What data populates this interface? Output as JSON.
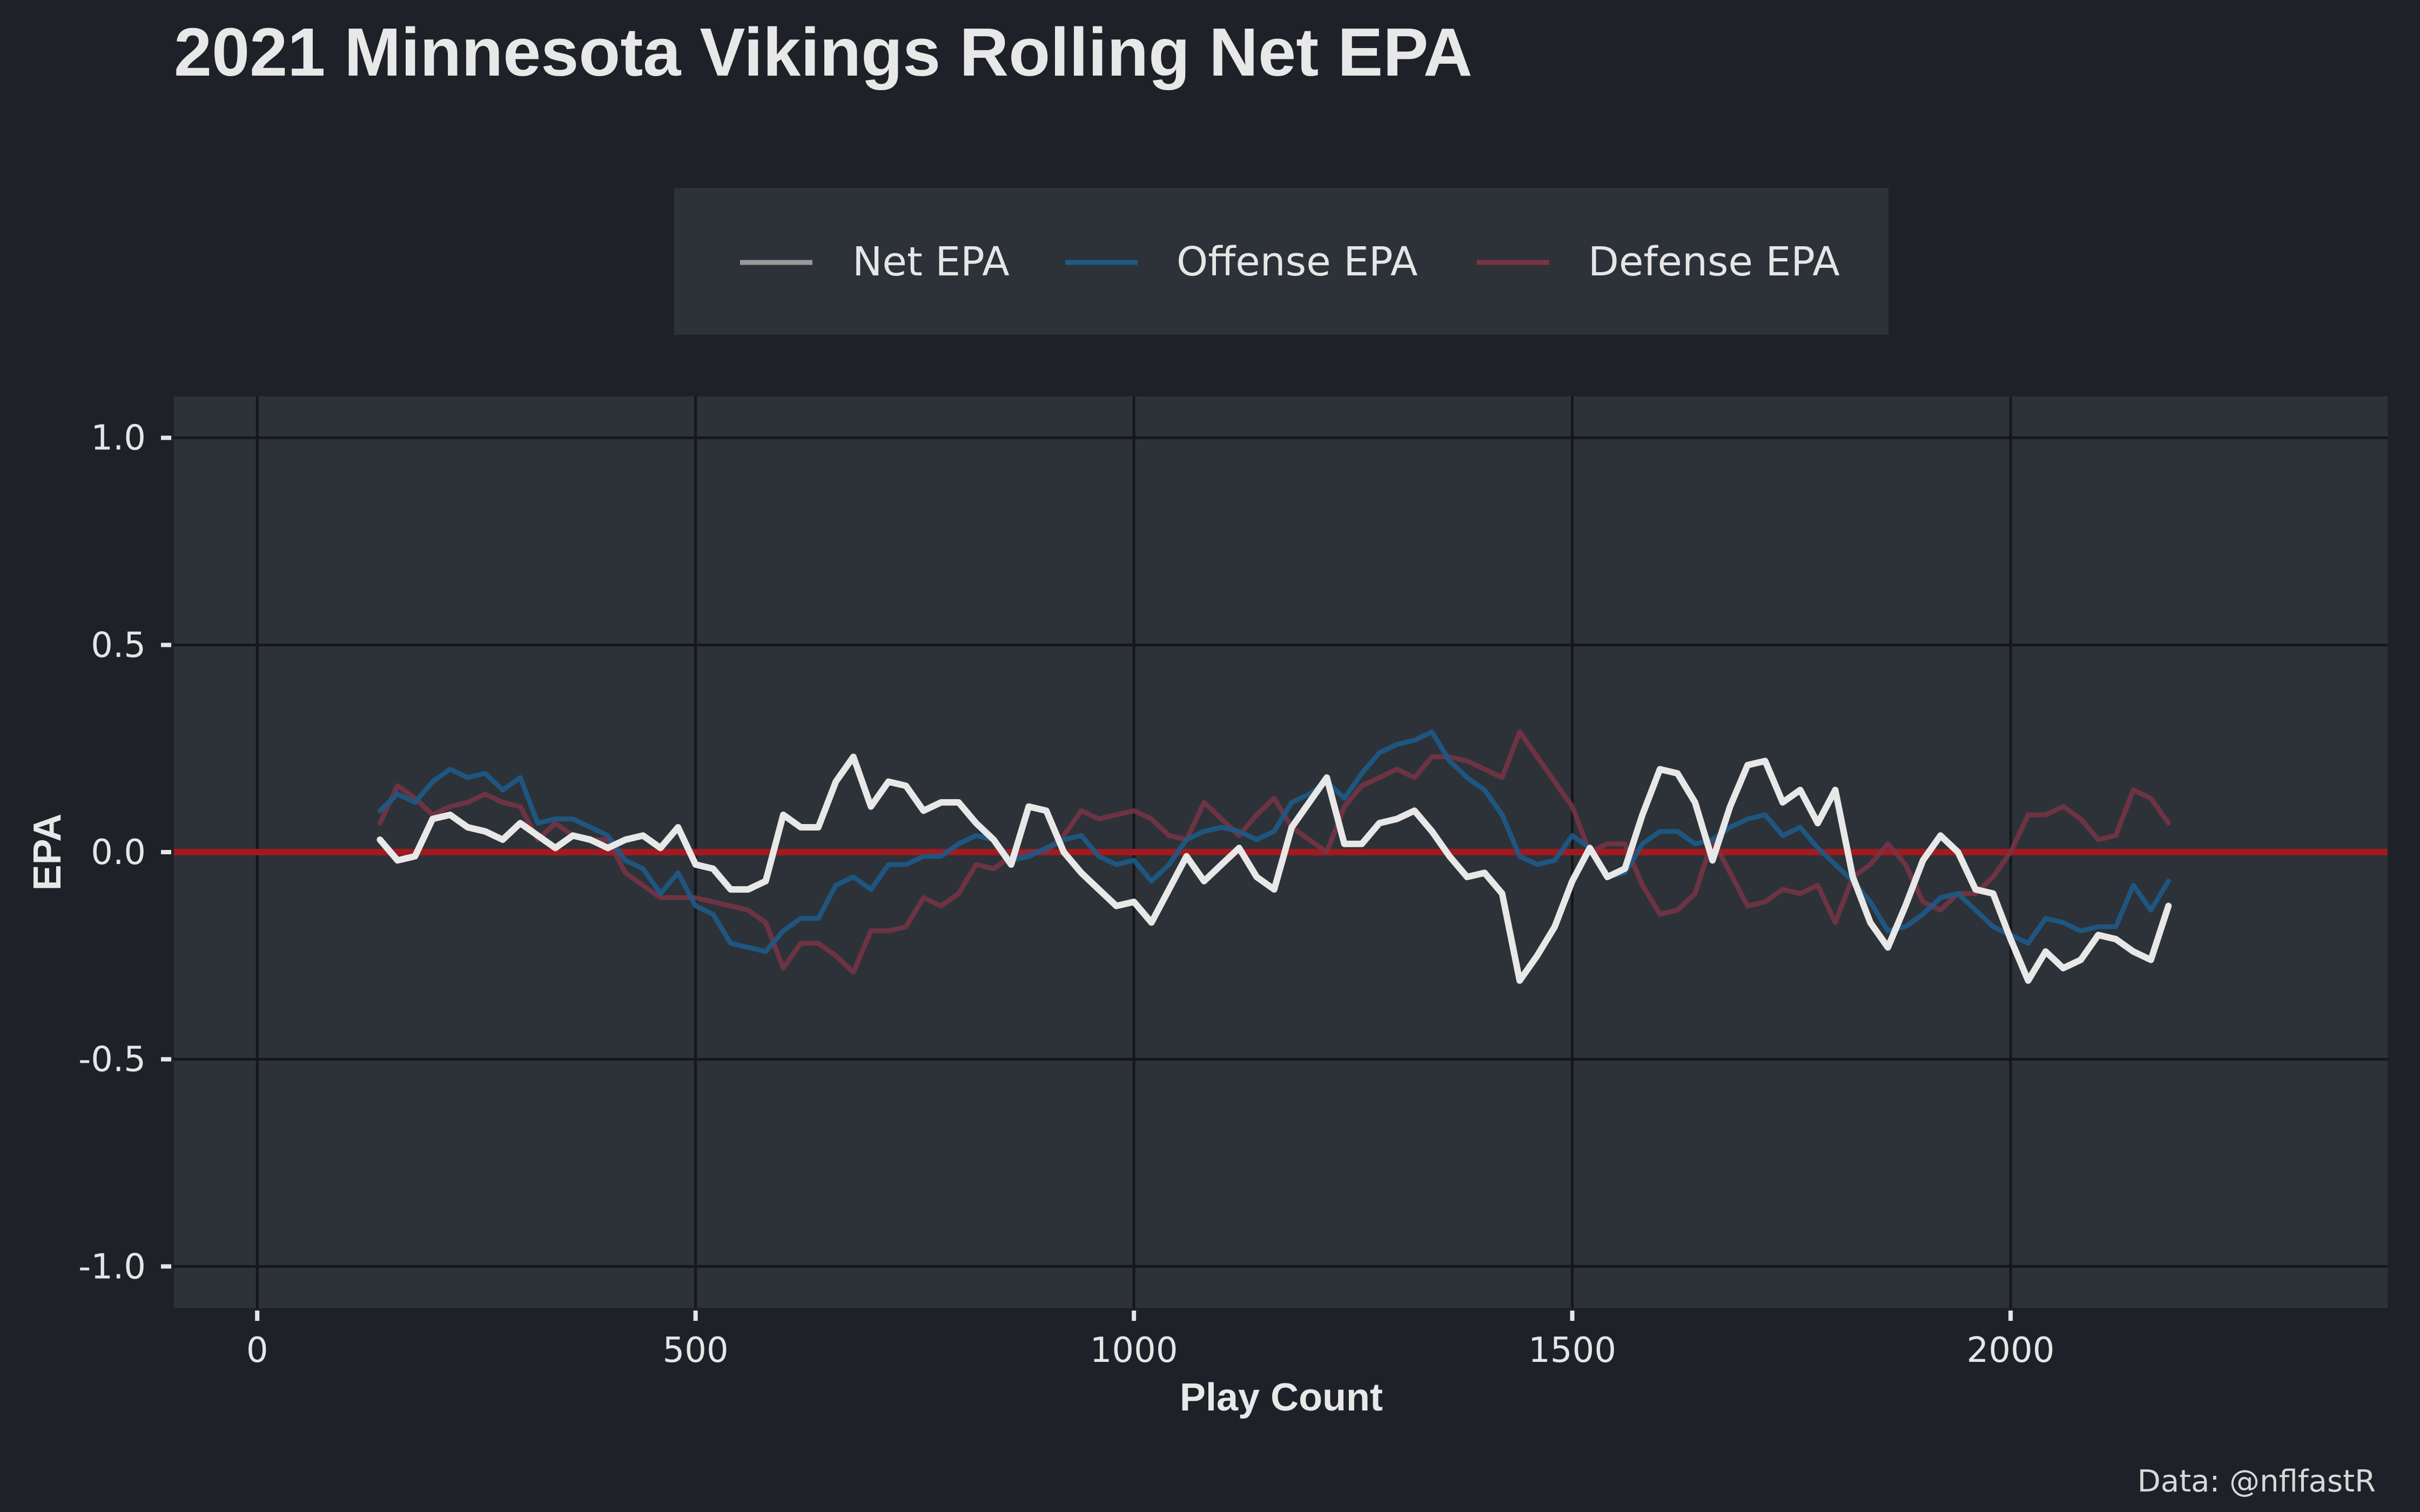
{
  "colors": {
    "background": "#1e2128",
    "panel": "#2d3238",
    "grid": "#15171b",
    "text": "#e6e6e6",
    "net": "#e8e8e8",
    "offense": "#1d5a88",
    "defense": "#7a3445",
    "zero_line": "#a01a1f"
  },
  "chart_data": {
    "type": "line",
    "title": "2021 Minnesota Vikings Rolling Net EPA",
    "xlabel": "Play Count",
    "ylabel": "EPA",
    "caption": "Data: @nflfastR",
    "xlim": [
      -95,
      2430
    ],
    "ylim": [
      -1.1,
      1.1
    ],
    "xticks": [
      0,
      500,
      1000,
      1500,
      2000
    ],
    "xtick_labels": [
      "0",
      "500",
      "1000",
      "1500",
      "2000"
    ],
    "yticks": [
      1.0,
      0.5,
      0.0,
      -0.5,
      -1.0
    ],
    "ytick_labels": [
      "1.0",
      "0.5",
      "0.0",
      "-0.5",
      "-1.0"
    ],
    "grid": true,
    "legend_position": "top",
    "hline": 0,
    "series": [
      {
        "name": "Net EPA",
        "color": "#e8e8e8",
        "x": [
          140,
          160,
          180,
          200,
          220,
          240,
          260,
          280,
          300,
          320,
          340,
          360,
          380,
          400,
          420,
          440,
          460,
          480,
          500,
          520,
          540,
          560,
          580,
          600,
          620,
          640,
          660,
          680,
          700,
          720,
          740,
          760,
          780,
          800,
          820,
          840,
          860,
          880,
          900,
          920,
          940,
          960,
          980,
          1000,
          1020,
          1040,
          1060,
          1080,
          1100,
          1120,
          1140,
          1160,
          1180,
          1200,
          1220,
          1240,
          1260,
          1280,
          1300,
          1320,
          1340,
          1360,
          1380,
          1400,
          1420,
          1440,
          1460,
          1480,
          1500,
          1520,
          1540,
          1560,
          1580,
          1600,
          1620,
          1640,
          1660,
          1680,
          1700,
          1720,
          1740,
          1760,
          1780,
          1800,
          1820,
          1840,
          1860,
          1880,
          1900,
          1920,
          1940,
          1960,
          1980,
          2000,
          2020,
          2040,
          2060,
          2080,
          2100,
          2120,
          2140,
          2160,
          2180
        ],
        "y": [
          0.03,
          -0.02,
          -0.01,
          0.08,
          0.09,
          0.06,
          0.05,
          0.03,
          0.07,
          0.04,
          0.01,
          0.04,
          0.03,
          0.01,
          0.03,
          0.04,
          0.01,
          0.06,
          -0.03,
          -0.04,
          -0.09,
          -0.09,
          -0.07,
          0.09,
          0.06,
          0.06,
          0.17,
          0.23,
          0.11,
          0.17,
          0.16,
          0.1,
          0.12,
          0.12,
          0.07,
          0.03,
          -0.03,
          0.11,
          0.1,
          0.0,
          -0.05,
          -0.09,
          -0.13,
          -0.12,
          -0.17,
          -0.09,
          -0.01,
          -0.07,
          -0.03,
          0.01,
          -0.06,
          -0.09,
          0.06,
          0.12,
          0.18,
          0.02,
          0.02,
          0.07,
          0.08,
          0.1,
          0.05,
          -0.01,
          -0.06,
          -0.05,
          -0.1,
          -0.31,
          -0.25,
          -0.18,
          -0.07,
          0.01,
          -0.06,
          -0.04,
          0.09,
          0.2,
          0.19,
          0.12,
          -0.02,
          0.11,
          0.21,
          0.22,
          0.12,
          0.15,
          0.07,
          0.15,
          -0.06,
          -0.17,
          -0.23,
          -0.13,
          -0.02,
          0.04,
          0.0,
          -0.09,
          -0.1,
          -0.21,
          -0.31,
          -0.24,
          -0.28,
          -0.26,
          -0.2,
          -0.21,
          -0.24,
          -0.26,
          -0.13
        ]
      },
      {
        "name": "Offense EPA",
        "color": "#1d5a88",
        "x": [
          140,
          160,
          180,
          200,
          220,
          240,
          260,
          280,
          300,
          320,
          340,
          360,
          380,
          400,
          420,
          440,
          460,
          480,
          500,
          520,
          540,
          560,
          580,
          600,
          620,
          640,
          660,
          680,
          700,
          720,
          740,
          760,
          780,
          800,
          820,
          840,
          860,
          880,
          900,
          920,
          940,
          960,
          980,
          1000,
          1020,
          1040,
          1060,
          1080,
          1100,
          1120,
          1140,
          1160,
          1180,
          1200,
          1220,
          1240,
          1260,
          1280,
          1300,
          1320,
          1340,
          1360,
          1380,
          1400,
          1420,
          1440,
          1460,
          1480,
          1500,
          1520,
          1540,
          1560,
          1580,
          1600,
          1620,
          1640,
          1660,
          1680,
          1700,
          1720,
          1740,
          1760,
          1780,
          1800,
          1820,
          1840,
          1860,
          1880,
          1900,
          1920,
          1940,
          1960,
          1980,
          2000,
          2020,
          2040,
          2060,
          2080,
          2100,
          2120,
          2140,
          2160,
          2180
        ],
        "y": [
          0.1,
          0.14,
          0.12,
          0.17,
          0.2,
          0.18,
          0.19,
          0.15,
          0.18,
          0.07,
          0.08,
          0.08,
          0.06,
          0.04,
          -0.02,
          -0.04,
          -0.1,
          -0.05,
          -0.13,
          -0.15,
          -0.22,
          -0.23,
          -0.24,
          -0.19,
          -0.16,
          -0.16,
          -0.08,
          -0.06,
          -0.09,
          -0.03,
          -0.03,
          -0.01,
          -0.01,
          0.02,
          0.04,
          0.03,
          -0.02,
          -0.01,
          0.01,
          0.03,
          0.04,
          -0.01,
          -0.03,
          -0.02,
          -0.07,
          -0.03,
          0.03,
          0.05,
          0.06,
          0.05,
          0.03,
          0.05,
          0.12,
          0.14,
          0.17,
          0.13,
          0.19,
          0.24,
          0.26,
          0.27,
          0.29,
          0.22,
          0.18,
          0.15,
          0.09,
          -0.01,
          -0.03,
          -0.02,
          0.04,
          0.01,
          -0.06,
          -0.05,
          0.02,
          0.05,
          0.05,
          0.02,
          0.03,
          0.06,
          0.08,
          0.09,
          0.04,
          0.06,
          0.01,
          -0.03,
          -0.07,
          -0.12,
          -0.19,
          -0.18,
          -0.15,
          -0.11,
          -0.1,
          -0.14,
          -0.18,
          -0.2,
          -0.22,
          -0.16,
          -0.17,
          -0.19,
          -0.18,
          -0.18,
          -0.08,
          -0.14,
          -0.07
        ]
      },
      {
        "name": "Defense EPA",
        "color": "#7a3445",
        "x": [
          140,
          160,
          180,
          200,
          220,
          240,
          260,
          280,
          300,
          320,
          340,
          360,
          380,
          400,
          420,
          440,
          460,
          480,
          500,
          520,
          540,
          560,
          580,
          600,
          620,
          640,
          660,
          680,
          700,
          720,
          740,
          760,
          780,
          800,
          820,
          840,
          860,
          880,
          900,
          920,
          940,
          960,
          980,
          1000,
          1020,
          1040,
          1060,
          1080,
          1100,
          1120,
          1140,
          1160,
          1180,
          1200,
          1220,
          1240,
          1260,
          1280,
          1300,
          1320,
          1340,
          1360,
          1380,
          1400,
          1420,
          1440,
          1460,
          1480,
          1500,
          1520,
          1540,
          1560,
          1580,
          1600,
          1620,
          1640,
          1660,
          1680,
          1700,
          1720,
          1740,
          1760,
          1780,
          1800,
          1820,
          1840,
          1860,
          1880,
          1900,
          1920,
          1940,
          1960,
          1980,
          2000,
          2020,
          2040,
          2060,
          2080,
          2100,
          2120,
          2140,
          2160,
          2180
        ],
        "y": [
          0.07,
          0.16,
          0.13,
          0.09,
          0.11,
          0.12,
          0.14,
          0.12,
          0.11,
          0.03,
          0.07,
          0.04,
          0.03,
          0.03,
          -0.05,
          -0.08,
          -0.11,
          -0.11,
          -0.11,
          -0.12,
          -0.13,
          -0.14,
          -0.17,
          -0.28,
          -0.22,
          -0.22,
          -0.25,
          -0.29,
          -0.19,
          -0.19,
          -0.18,
          -0.11,
          -0.13,
          -0.1,
          -0.03,
          -0.04,
          -0.01,
          0.0,
          0.0,
          0.04,
          0.1,
          0.08,
          0.09,
          0.1,
          0.08,
          0.04,
          0.03,
          0.12,
          0.08,
          0.04,
          0.09,
          0.13,
          0.06,
          0.03,
          0.0,
          0.11,
          0.16,
          0.18,
          0.2,
          0.18,
          0.23,
          0.23,
          0.22,
          0.2,
          0.18,
          0.29,
          0.23,
          0.17,
          0.11,
          0.0,
          0.02,
          0.02,
          -0.08,
          -0.15,
          -0.14,
          -0.1,
          0.03,
          -0.05,
          -0.13,
          -0.12,
          -0.09,
          -0.1,
          -0.08,
          -0.17,
          -0.06,
          -0.03,
          0.02,
          -0.03,
          -0.12,
          -0.14,
          -0.1,
          -0.1,
          -0.06,
          0.0,
          0.09,
          0.09,
          0.11,
          0.08,
          0.03,
          0.04,
          0.15,
          0.13,
          0.07
        ]
      }
    ]
  }
}
